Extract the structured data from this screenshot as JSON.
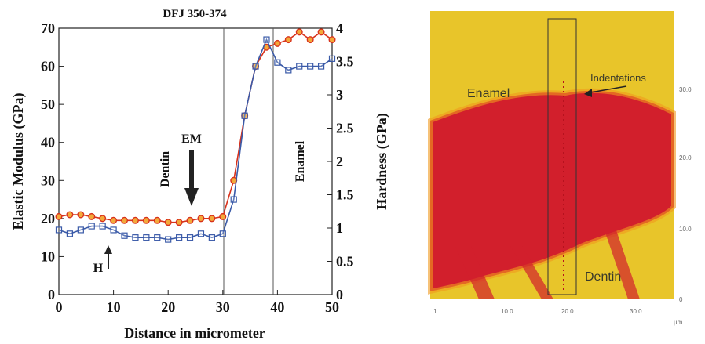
{
  "chart_data": {
    "type": "line",
    "title": "DFJ 350-374",
    "xlabel": "Distance in micrometer",
    "ylabel_left": "Elastic Modulus (GPa)",
    "ylabel_right": "Hardness (GPa)",
    "xlim": [
      0,
      50
    ],
    "ylim_left": [
      0,
      70
    ],
    "ylim_right": [
      0,
      4
    ],
    "x_ticks": [
      "0",
      "10",
      "20",
      "30",
      "40",
      "50"
    ],
    "y_left_ticks": [
      "0",
      "10",
      "20",
      "30",
      "40",
      "50",
      "60",
      "70"
    ],
    "y_right_ticks": [
      "0",
      "0.5",
      "1",
      "1.5",
      "2",
      "2.5",
      "3",
      "3.5",
      "4"
    ],
    "grid": false,
    "legend": "none",
    "vertical_lines_x": [
      30.2,
      39.3
    ],
    "annotations": {
      "dentin": "Dentin",
      "enamel": "Enamel",
      "em": "EM",
      "h": "H"
    },
    "series": [
      {
        "marker": "circle",
        "color": "#d8321c",
        "marker_fill": "#f3a93a",
        "axis": "left",
        "x": [
          0,
          2,
          4,
          6,
          8,
          10,
          12,
          14,
          16,
          18,
          20,
          22,
          24,
          26,
          28,
          30,
          32,
          34,
          36,
          38,
          40,
          42,
          44,
          46,
          48,
          50
        ],
        "y": [
          20.5,
          21,
          21,
          20.5,
          20,
          19.5,
          19.5,
          19.5,
          19.5,
          19.5,
          19,
          19,
          19.5,
          20,
          20,
          20.5,
          30,
          47,
          60,
          65,
          66,
          67,
          69,
          67,
          69,
          67
        ]
      },
      {
        "marker": "square",
        "color": "#3a5aa8",
        "marker_fill": "none",
        "axis": "left",
        "x": [
          0,
          2,
          4,
          6,
          8,
          10,
          12,
          14,
          16,
          18,
          20,
          22,
          24,
          26,
          28,
          30,
          32,
          34,
          36,
          38,
          40,
          42,
          44,
          46,
          48,
          50
        ],
        "y": [
          17,
          16,
          17,
          18,
          18,
          17,
          15.5,
          15,
          15,
          15,
          14.5,
          15,
          15,
          16,
          15,
          16,
          25,
          47,
          60,
          67,
          61,
          59,
          60,
          60,
          60,
          62
        ]
      }
    ]
  },
  "map": {
    "labels": {
      "enamel": "Enamel",
      "indentations": "Indentations",
      "dentin": "Dentin"
    },
    "y_ticks": [
      "30.0",
      "20.0",
      "10.0",
      "0"
    ],
    "x_ticks": [
      "1",
      "10.0",
      "20.0",
      "30.0"
    ],
    "unit": "µm",
    "colors": {
      "hard": "#e8c52a",
      "soft": "#d21f2c",
      "edge": "#f09a1e"
    }
  }
}
